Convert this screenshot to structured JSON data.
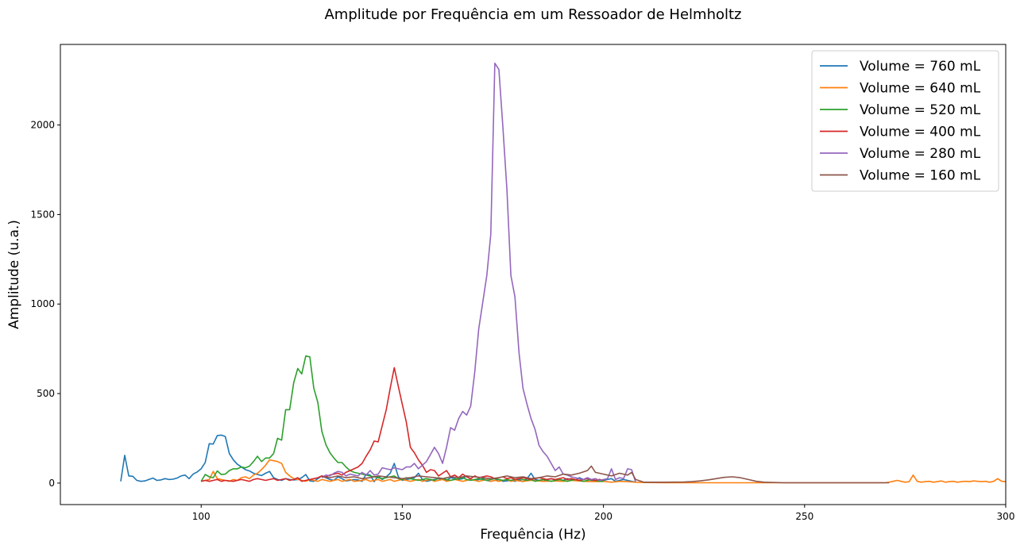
{
  "chart_data": {
    "type": "line",
    "title": "Amplitude por Frequência em um Ressoador de Helmholtz",
    "xlabel": "Frequência (Hz)",
    "ylabel": "Amplitude (u.a.)",
    "xlim": [
      65,
      300
    ],
    "ylim": [
      -120,
      2450
    ],
    "xticks": [
      100,
      150,
      200,
      250,
      300
    ],
    "yticks": [
      0,
      500,
      1000,
      1500,
      2000
    ],
    "grid": false,
    "legend_position": "top-right",
    "series": [
      {
        "name": "Volume = 760 mL",
        "color": "#1f77b4",
        "x": [
          80,
          81,
          82,
          83,
          84,
          85,
          86,
          87,
          88,
          89,
          90,
          91,
          92,
          93,
          94,
          95,
          96,
          97,
          98,
          99,
          100,
          101,
          102,
          103,
          104,
          105,
          106,
          107,
          108,
          109,
          110,
          111,
          112,
          113,
          114,
          115,
          116,
          117,
          118,
          119,
          120,
          121,
          122,
          123,
          124,
          125,
          126,
          127,
          128,
          129,
          130,
          131,
          132,
          133,
          134,
          135,
          136,
          137,
          138,
          139,
          140,
          141,
          142,
          143,
          144,
          145,
          146,
          147,
          148,
          149,
          150,
          151,
          152,
          153,
          154,
          155,
          156,
          157,
          158,
          159,
          160,
          161,
          162,
          163,
          164,
          165,
          166,
          167,
          168,
          169,
          170,
          171,
          172,
          173,
          174,
          175,
          176,
          177,
          178,
          179,
          180,
          181,
          182,
          183,
          184,
          185,
          186,
          187,
          188,
          189,
          190,
          191,
          192,
          193,
          194,
          195,
          196,
          197,
          198,
          199,
          200,
          201,
          202,
          203,
          204,
          205,
          206,
          207,
          208
        ],
        "y": [
          10,
          155,
          40,
          38,
          15,
          10,
          12,
          20,
          28,
          15,
          18,
          25,
          20,
          22,
          28,
          40,
          45,
          25,
          50,
          62,
          80,
          115,
          220,
          218,
          265,
          268,
          260,
          165,
          130,
          105,
          90,
          75,
          68,
          55,
          48,
          42,
          55,
          65,
          30,
          20,
          15,
          25,
          20,
          18,
          20,
          30,
          48,
          12,
          10,
          25,
          40,
          30,
          20,
          15,
          35,
          25,
          12,
          15,
          20,
          18,
          10,
          50,
          45,
          8,
          40,
          20,
          35,
          55,
          110,
          35,
          15,
          20,
          25,
          30,
          55,
          20,
          10,
          15,
          20,
          25,
          20,
          15,
          30,
          25,
          20,
          25,
          40,
          20,
          15,
          20,
          25,
          15,
          10,
          15,
          20,
          10,
          12,
          15,
          10,
          20,
          8,
          25,
          55,
          20,
          15,
          10,
          20,
          25,
          18,
          20,
          15,
          25,
          20,
          15,
          30,
          20,
          25,
          15,
          10,
          20,
          15,
          20,
          25,
          10,
          15,
          20,
          15,
          10,
          5
        ]
      },
      {
        "name": "Volume = 640 mL",
        "color": "#ff7f0e",
        "x": [
          100,
          101,
          102,
          103,
          104,
          105,
          106,
          107,
          108,
          109,
          110,
          111,
          112,
          113,
          114,
          115,
          116,
          117,
          118,
          119,
          120,
          121,
          122,
          123,
          124,
          125,
          126,
          127,
          128,
          129,
          130,
          131,
          132,
          133,
          134,
          135,
          136,
          137,
          138,
          139,
          140,
          141,
          142,
          143,
          144,
          145,
          146,
          147,
          148,
          149,
          150,
          151,
          152,
          153,
          154,
          155,
          156,
          157,
          158,
          159,
          160,
          161,
          162,
          163,
          164,
          165,
          166,
          167,
          168,
          169,
          170,
          171,
          172,
          173,
          174,
          175,
          176,
          177,
          178,
          179,
          180,
          182,
          185,
          188,
          190,
          192,
          195,
          198,
          200,
          202,
          204,
          206,
          208,
          210,
          215,
          220,
          225,
          230,
          235,
          240,
          245,
          250,
          255,
          260,
          265,
          270,
          271,
          272,
          273,
          274,
          275,
          276,
          277,
          278,
          279,
          280,
          281,
          282,
          283,
          284,
          285,
          286,
          287,
          288,
          289,
          290,
          291,
          292,
          293,
          294,
          295,
          296,
          297,
          298,
          299,
          300
        ],
        "y": [
          10,
          15,
          20,
          65,
          25,
          20,
          15,
          10,
          20,
          15,
          30,
          35,
          25,
          45,
          55,
          75,
          100,
          130,
          125,
          120,
          110,
          60,
          40,
          25,
          20,
          15,
          10,
          20,
          15,
          10,
          20,
          15,
          10,
          15,
          20,
          10,
          15,
          20,
          10,
          12,
          15,
          20,
          10,
          15,
          20,
          10,
          15,
          20,
          10,
          15,
          20,
          15,
          10,
          15,
          20,
          10,
          15,
          20,
          10,
          15,
          20,
          10,
          15,
          20,
          15,
          10,
          15,
          20,
          15,
          10,
          15,
          20,
          10,
          15,
          10,
          15,
          20,
          10,
          15,
          12,
          10,
          15,
          10,
          12,
          10,
          15,
          10,
          8,
          10,
          5,
          10,
          8,
          5,
          3,
          2,
          2,
          2,
          2,
          2,
          2,
          2,
          2,
          2,
          2,
          2,
          2,
          5,
          10,
          15,
          10,
          5,
          8,
          45,
          10,
          5,
          8,
          10,
          5,
          8,
          12,
          5,
          8,
          10,
          5,
          8,
          10,
          8,
          12,
          10,
          8,
          10,
          5,
          10,
          25,
          10,
          8
        ]
      },
      {
        "name": "Volume = 520 mL",
        "color": "#2ca02c",
        "x": [
          100,
          101,
          102,
          103,
          104,
          105,
          106,
          107,
          108,
          109,
          110,
          111,
          112,
          113,
          114,
          115,
          116,
          117,
          118,
          119,
          120,
          121,
          122,
          123,
          124,
          125,
          126,
          127,
          128,
          129,
          130,
          131,
          132,
          133,
          134,
          135,
          136,
          137,
          138,
          139,
          140,
          141,
          142,
          143,
          144,
          145,
          146,
          147,
          148,
          149,
          150,
          151,
          152,
          153,
          154,
          155,
          156,
          157,
          158,
          159,
          160,
          161,
          162,
          163,
          164,
          165,
          166,
          167,
          168,
          169,
          170,
          171,
          172,
          173,
          174,
          175,
          176,
          177,
          178,
          179,
          180,
          181,
          182,
          183,
          184,
          185,
          186,
          187,
          188,
          189,
          190,
          191,
          192,
          193,
          194,
          195,
          196,
          197,
          198,
          199,
          200
        ],
        "y": [
          10,
          48,
          35,
          30,
          68,
          48,
          50,
          70,
          80,
          80,
          90,
          85,
          95,
          120,
          150,
          120,
          140,
          140,
          165,
          250,
          240,
          410,
          410,
          560,
          640,
          610,
          710,
          705,
          530,
          450,
          290,
          215,
          170,
          140,
          115,
          115,
          90,
          70,
          60,
          55,
          50,
          45,
          40,
          35,
          30,
          25,
          30,
          35,
          40,
          25,
          20,
          30,
          25,
          20,
          15,
          20,
          25,
          20,
          15,
          30,
          25,
          20,
          15,
          20,
          25,
          30,
          20,
          15,
          20,
          25,
          20,
          15,
          20,
          25,
          20,
          15,
          20,
          15,
          20,
          25,
          20,
          15,
          20,
          10,
          15,
          20,
          15,
          10,
          15,
          20,
          15,
          10,
          15,
          20,
          15,
          10,
          15,
          20,
          15,
          10,
          10
        ]
      },
      {
        "name": "Volume = 400 mL",
        "color": "#d62728",
        "x": [
          100,
          101,
          102,
          103,
          104,
          105,
          106,
          107,
          108,
          109,
          110,
          111,
          112,
          113,
          114,
          115,
          116,
          117,
          118,
          119,
          120,
          121,
          122,
          123,
          124,
          125,
          126,
          127,
          128,
          129,
          130,
          131,
          132,
          133,
          134,
          135,
          136,
          137,
          138,
          139,
          140,
          141,
          142,
          143,
          144,
          145,
          146,
          147,
          148,
          149,
          150,
          151,
          152,
          153,
          154,
          155,
          156,
          157,
          158,
          159,
          160,
          161,
          162,
          163,
          164,
          165,
          166,
          167,
          168,
          169,
          170,
          171,
          172,
          173,
          174,
          175,
          176,
          177,
          178,
          179,
          180,
          181,
          182,
          183,
          184,
          185,
          186,
          187,
          188,
          189,
          190,
          191,
          192,
          193,
          194,
          195,
          196,
          197,
          198,
          199,
          200
        ],
        "y": [
          10,
          15,
          10,
          15,
          20,
          10,
          15,
          12,
          10,
          15,
          20,
          15,
          10,
          20,
          25,
          20,
          15,
          20,
          25,
          15,
          20,
          25,
          15,
          20,
          30,
          10,
          15,
          20,
          25,
          30,
          40,
          35,
          45,
          50,
          55,
          45,
          60,
          70,
          80,
          90,
          110,
          150,
          185,
          235,
          230,
          320,
          410,
          530,
          645,
          540,
          440,
          340,
          200,
          170,
          130,
          100,
          60,
          75,
          70,
          40,
          55,
          70,
          35,
          45,
          30,
          50,
          35,
          25,
          40,
          30,
          35,
          40,
          35,
          25,
          30,
          35,
          25,
          30,
          20,
          25,
          30,
          25,
          20,
          25,
          30,
          25,
          20,
          25,
          20,
          25,
          30,
          20,
          25,
          20,
          15,
          20,
          25,
          20,
          15,
          20,
          15
        ]
      },
      {
        "name": "Volume = 280 mL",
        "color": "#9467bd",
        "x": [
          130,
          131,
          132,
          133,
          134,
          135,
          136,
          137,
          138,
          139,
          140,
          141,
          142,
          143,
          144,
          145,
          146,
          147,
          148,
          149,
          150,
          151,
          152,
          153,
          154,
          155,
          156,
          157,
          158,
          159,
          160,
          161,
          162,
          163,
          164,
          165,
          166,
          167,
          168,
          169,
          170,
          171,
          172,
          173,
          174,
          175,
          176,
          177,
          178,
          179,
          180,
          181,
          182,
          183,
          184,
          185,
          186,
          187,
          188,
          189,
          190,
          191,
          192,
          193,
          194,
          195,
          196,
          197,
          198,
          199,
          200,
          201,
          202,
          203,
          204,
          205,
          206,
          207,
          208
        ],
        "y": [
          30,
          45,
          40,
          55,
          65,
          60,
          40,
          50,
          45,
          40,
          60,
          45,
          70,
          45,
          50,
          85,
          80,
          75,
          85,
          80,
          75,
          90,
          90,
          110,
          80,
          100,
          120,
          160,
          200,
          165,
          110,
          200,
          310,
          295,
          360,
          400,
          380,
          430,
          620,
          860,
          1010,
          1160,
          1390,
          2345,
          2310,
          1990,
          1640,
          1160,
          1040,
          730,
          530,
          440,
          360,
          300,
          210,
          175,
          150,
          110,
          70,
          90,
          50,
          45,
          35,
          30,
          25,
          20,
          30,
          20,
          25,
          15,
          20,
          25,
          80,
          20,
          30,
          25,
          80,
          75,
          5
        ]
      },
      {
        "name": "Volume = 160 mL",
        "color": "#8c564b",
        "x": [
          130,
          132,
          134,
          136,
          138,
          140,
          142,
          144,
          146,
          148,
          150,
          152,
          154,
          156,
          158,
          160,
          162,
          164,
          166,
          168,
          170,
          172,
          174,
          176,
          178,
          180,
          182,
          184,
          186,
          188,
          190,
          192,
          194,
          196,
          197,
          198,
          200,
          202,
          204,
          206,
          207,
          208,
          210,
          215,
          220,
          222,
          224,
          226,
          228,
          230,
          232,
          234,
          236,
          238,
          240,
          245,
          250,
          255,
          260,
          265,
          270,
          271
        ],
        "y": [
          35,
          30,
          40,
          30,
          35,
          25,
          30,
          40,
          35,
          30,
          25,
          30,
          40,
          35,
          30,
          25,
          35,
          30,
          40,
          35,
          30,
          25,
          30,
          40,
          30,
          35,
          25,
          30,
          40,
          35,
          50,
          45,
          55,
          70,
          95,
          60,
          50,
          40,
          55,
          45,
          60,
          20,
          5,
          5,
          6,
          8,
          12,
          18,
          25,
          32,
          35,
          30,
          20,
          10,
          5,
          2,
          2,
          2,
          2,
          2,
          2,
          2
        ]
      }
    ]
  }
}
